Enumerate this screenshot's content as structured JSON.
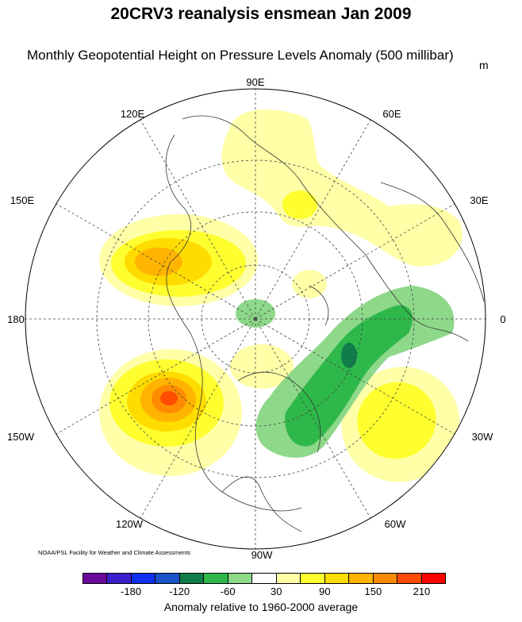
{
  "title": "20CRV3 reanalysis ensmean Jan 2009",
  "subtitle": "Monthly Geopotential Height on Pressure Levels Anomaly (500 millibar)",
  "units": "m",
  "credit": "NOAA/PSL Facility for Weather and Climate Assessments",
  "longitude_labels": [
    "90E",
    "60E",
    "30E",
    "0",
    "30W",
    "60W",
    "90W",
    "120W",
    "150W",
    "180",
    "150E",
    "120E"
  ],
  "colorbar": {
    "colors": [
      "#6a0a9a",
      "#3a20c8",
      "#1030f0",
      "#1a52c8",
      "#0f7c4a",
      "#2fb84a",
      "#8ed88a",
      "#ffffff",
      "#ffffa8",
      "#ffff30",
      "#ffdc00",
      "#ffb400",
      "#ff8c00",
      "#ff4c00",
      "#ff0000"
    ],
    "ticks": [
      "-180",
      "-120",
      "-60",
      "30",
      "90",
      "150",
      "210"
    ],
    "label": "Anomaly relative to 1960-2000 average"
  }
}
